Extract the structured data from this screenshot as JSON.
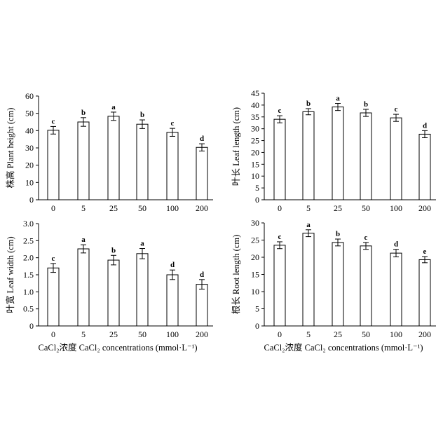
{
  "xlabel": {
    "left": "CaCl₂浓度 CaCl₂ concentrations (mmol·L⁻¹)",
    "right": "CaCl₂浓度 CaCl₂ concentrations (mmol·L⁻¹)"
  },
  "chart_data": [
    {
      "type": "bar",
      "ylabel": "株高 Plant height (cm)",
      "ylim": [
        0,
        60
      ],
      "yticks": [
        0,
        10,
        20,
        30,
        40,
        50,
        60
      ],
      "categories": [
        "0",
        "5",
        "25",
        "50",
        "100",
        "200"
      ],
      "values": [
        40.2,
        45.0,
        48.3,
        43.7,
        39.0,
        30.3
      ],
      "errors": [
        2.2,
        2.5,
        2.4,
        2.5,
        2.3,
        2.1
      ],
      "letters": [
        "c",
        "b",
        "a",
        "b",
        "c",
        "d"
      ]
    },
    {
      "type": "bar",
      "ylabel": "叶长 Leaf length (cm)",
      "ylim": [
        0,
        45
      ],
      "yticks": [
        0,
        5,
        10,
        15,
        20,
        25,
        30,
        35,
        40,
        45
      ],
      "categories": [
        "0",
        "5",
        "25",
        "50",
        "100",
        "200"
      ],
      "values": [
        34.0,
        37.2,
        39.2,
        36.7,
        34.6,
        27.7
      ],
      "errors": [
        1.5,
        1.3,
        1.5,
        1.5,
        1.5,
        1.5
      ],
      "letters": [
        "c",
        "b",
        "a",
        "b",
        "c",
        "d"
      ]
    },
    {
      "type": "bar",
      "ylabel": "叶宽 Leaf width (cm)",
      "ylim": [
        0,
        3.0
      ],
      "yticks": [
        "0",
        "0.5",
        "1.0",
        "1.5",
        "2.0",
        "2.5",
        "3.0"
      ],
      "categories": [
        "0",
        "5",
        "25",
        "50",
        "100",
        "200"
      ],
      "values": [
        1.7,
        2.26,
        1.93,
        2.12,
        1.5,
        1.22
      ],
      "errors": [
        0.13,
        0.12,
        0.14,
        0.15,
        0.14,
        0.14
      ],
      "letters": [
        "c",
        "a",
        "b",
        "a",
        "d",
        "d"
      ]
    },
    {
      "type": "bar",
      "ylabel": "根长 Root length (cm)",
      "ylim": [
        0,
        30
      ],
      "yticks": [
        0,
        5,
        10,
        15,
        20,
        25,
        30
      ],
      "categories": [
        "0",
        "5",
        "25",
        "50",
        "100",
        "200"
      ],
      "values": [
        23.5,
        27.0,
        24.3,
        23.3,
        21.2,
        19.3
      ],
      "errors": [
        1.0,
        1.0,
        1.0,
        1.0,
        1.1,
        0.9
      ],
      "letters": [
        "c",
        "a",
        "b",
        "c",
        "d",
        "e"
      ]
    }
  ]
}
